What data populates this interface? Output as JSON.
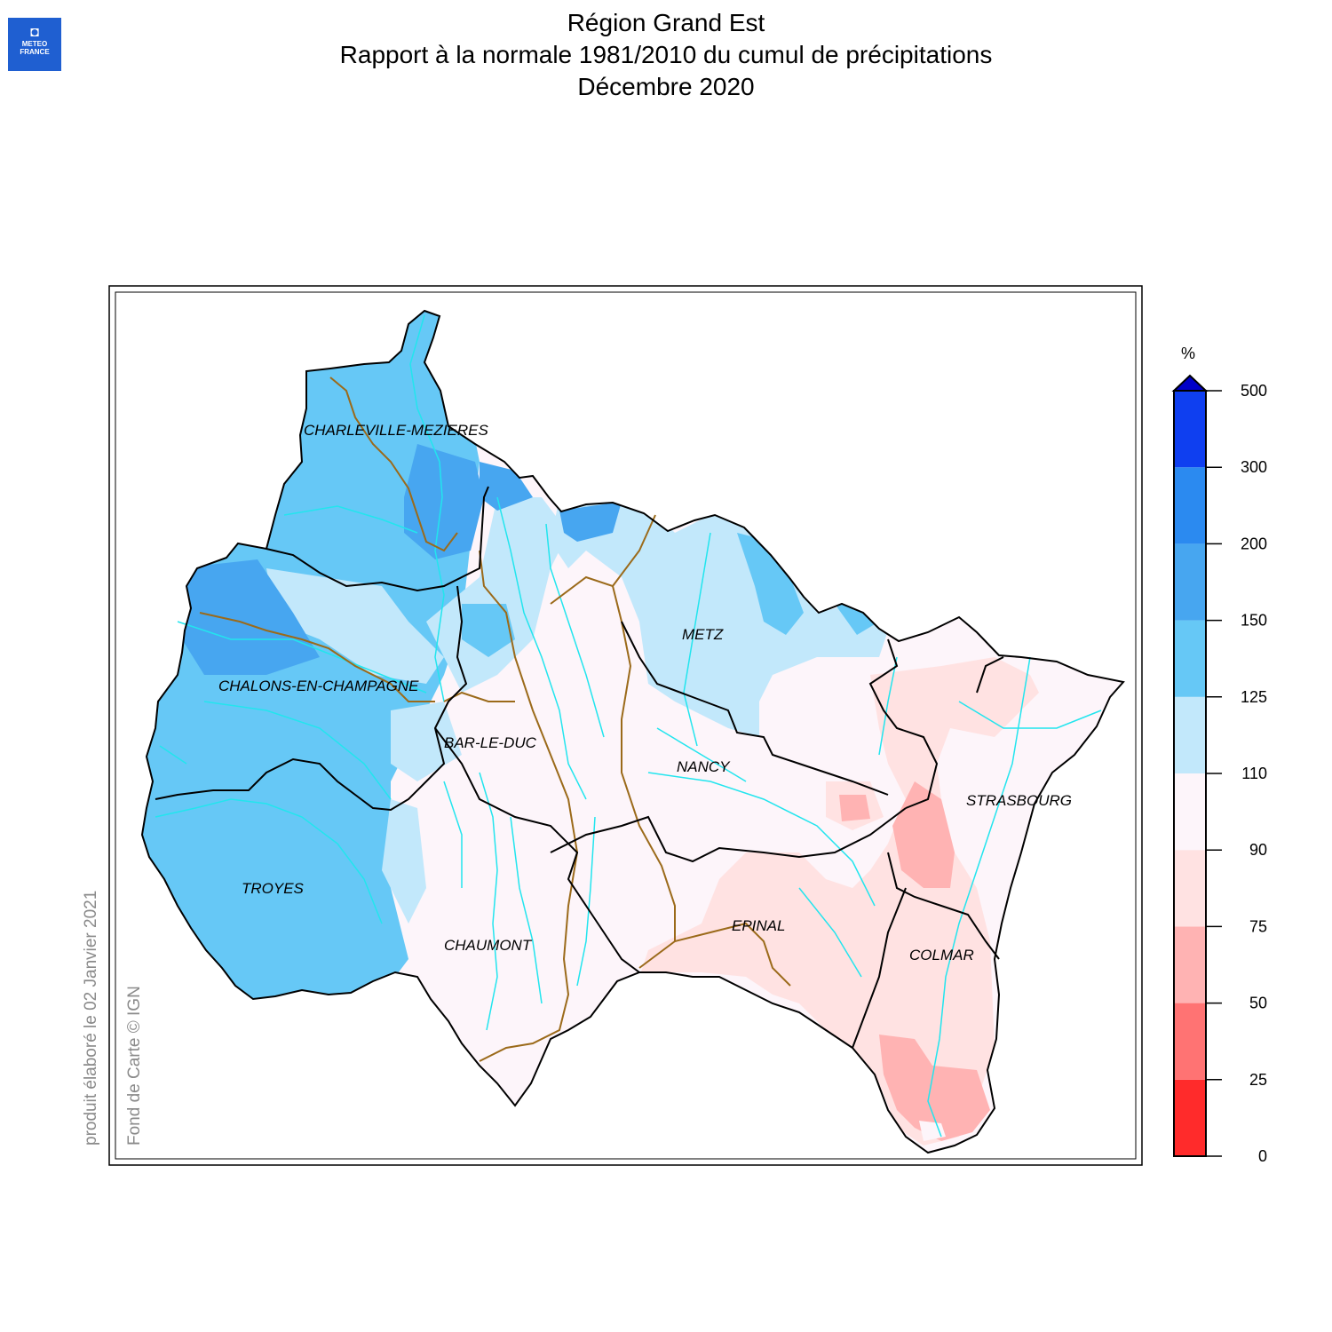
{
  "logo": {
    "line1": "METEO",
    "line2": "FRANCE"
  },
  "title": {
    "line1": "Région Grand Est",
    "line2": "Rapport à la normale 1981/2010 du cumul de précipitations",
    "line3": "Décembre 2020"
  },
  "notes": {
    "produced": "produit élaboré le 02 Janvier 2021",
    "basemap": "Fond de Carte © IGN"
  },
  "cities": [
    "CHARLEVILLE-MEZIERES",
    "METZ",
    "CHALONS-EN-CHAMPAGNE",
    "BAR-LE-DUC",
    "NANCY",
    "STRASBOURG",
    "TROYES",
    "EPINAL",
    "CHAUMONT",
    "COLMAR"
  ],
  "legend": {
    "unit": "%",
    "ticks": [
      "0",
      "25",
      "50",
      "75",
      "90",
      "110",
      "125",
      "150",
      "200",
      "300",
      "500"
    ],
    "colors": [
      "#ff2b2b",
      "#ff7373",
      "#ffb3b3",
      "#ffe2e2",
      "#fdf5fa",
      "#c2e8fb",
      "#66c8f6",
      "#47a6f0",
      "#2b8af0",
      "#0f3ff0"
    ],
    "overflow_color": "#0000c8"
  }
}
